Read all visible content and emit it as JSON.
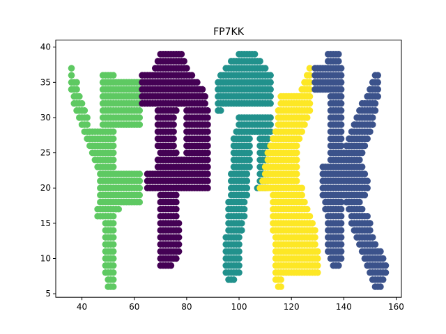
{
  "chart_data": {
    "type": "scatter",
    "title": "FP7KK",
    "xlabel": "",
    "ylabel": "",
    "xlim": [
      30,
      162
    ],
    "ylim": [
      4.5,
      41
    ],
    "x_ticks": [
      40,
      60,
      80,
      100,
      120,
      140,
      160
    ],
    "y_ticks": [
      5,
      10,
      15,
      20,
      25,
      30,
      35,
      40
    ],
    "grid": false,
    "legend": "none",
    "series": [
      {
        "color": "#5ec962",
        "spans": [
          [
            37,
            36,
            36
          ],
          [
            36,
            36,
            36
          ],
          [
            35,
            36,
            38
          ],
          [
            34,
            36,
            38
          ],
          [
            33,
            37,
            39
          ],
          [
            32,
            37,
            40
          ],
          [
            31,
            38,
            41
          ],
          [
            30,
            39,
            42
          ],
          [
            29,
            40,
            42
          ],
          [
            28,
            41,
            52
          ],
          [
            27,
            42,
            52
          ],
          [
            26,
            43,
            52
          ],
          [
            25,
            44,
            52
          ],
          [
            24,
            45,
            52
          ],
          [
            23,
            46,
            52
          ],
          [
            22,
            47,
            62
          ],
          [
            21,
            47,
            62
          ],
          [
            20,
            47,
            62
          ],
          [
            19,
            47,
            62
          ],
          [
            18,
            47,
            62
          ],
          [
            17,
            46,
            54
          ],
          [
            16,
            46,
            48
          ],
          [
            36,
            48,
            52
          ],
          [
            35,
            48,
            62
          ],
          [
            34,
            48,
            62
          ],
          [
            33,
            48,
            62
          ],
          [
            32,
            48,
            62
          ],
          [
            31,
            48,
            62
          ],
          [
            30,
            48,
            62
          ],
          [
            29,
            48,
            62
          ],
          [
            16,
            49,
            52
          ],
          [
            15,
            49,
            52
          ],
          [
            14,
            49,
            52
          ],
          [
            13,
            49,
            52
          ],
          [
            12,
            49,
            52
          ],
          [
            11,
            49,
            52
          ],
          [
            10,
            49,
            52
          ],
          [
            9,
            49,
            52
          ],
          [
            8,
            49,
            52
          ],
          [
            7,
            50,
            52
          ],
          [
            6,
            50,
            52
          ]
        ]
      },
      {
        "color": "#440154",
        "spans": [
          [
            39,
            70,
            78
          ],
          [
            38,
            69,
            79
          ],
          [
            37,
            68,
            80
          ],
          [
            36,
            63,
            82
          ],
          [
            35,
            63,
            84
          ],
          [
            34,
            63,
            86
          ],
          [
            33,
            63,
            87
          ],
          [
            32,
            63,
            87
          ],
          [
            31,
            69,
            76
          ],
          [
            30,
            69,
            75
          ],
          [
            29,
            69,
            75
          ],
          [
            28,
            69,
            75
          ],
          [
            27,
            69,
            75
          ],
          [
            26,
            69,
            75
          ],
          [
            25,
            70,
            76
          ],
          [
            24,
            69,
            88
          ],
          [
            23,
            69,
            88
          ],
          [
            22,
            65,
            88
          ],
          [
            21,
            65,
            88
          ],
          [
            20,
            65,
            88
          ],
          [
            19,
            70,
            76
          ],
          [
            18,
            70,
            76
          ],
          [
            17,
            70,
            76
          ],
          [
            16,
            70,
            76
          ],
          [
            15,
            70,
            77
          ],
          [
            14,
            70,
            77
          ],
          [
            13,
            70,
            77
          ],
          [
            12,
            70,
            77
          ],
          [
            11,
            70,
            77
          ],
          [
            10,
            70,
            76
          ],
          [
            9,
            70,
            74
          ],
          [
            31,
            80,
            88
          ],
          [
            30,
            80,
            88
          ],
          [
            29,
            80,
            88
          ],
          [
            28,
            80,
            88
          ],
          [
            27,
            80,
            88
          ],
          [
            26,
            80,
            88
          ],
          [
            25,
            80,
            88
          ]
        ]
      },
      {
        "color": "#21918c",
        "spans": [
          [
            39,
            100,
            106
          ],
          [
            38,
            97,
            108
          ],
          [
            37,
            95,
            110
          ],
          [
            36,
            93,
            112
          ],
          [
            35,
            92,
            112
          ],
          [
            34,
            92,
            112
          ],
          [
            33,
            92,
            112
          ],
          [
            32,
            92,
            112
          ],
          [
            31,
            92,
            93
          ],
          [
            30,
            100,
            112
          ],
          [
            29,
            100,
            112
          ],
          [
            28,
            99,
            112
          ],
          [
            27,
            98,
            104
          ],
          [
            26,
            98,
            104
          ],
          [
            25,
            98,
            104
          ],
          [
            24,
            98,
            104
          ],
          [
            23,
            98,
            104
          ],
          [
            22,
            97,
            103
          ],
          [
            21,
            97,
            103
          ],
          [
            20,
            97,
            103
          ],
          [
            19,
            97,
            103
          ],
          [
            18,
            96,
            102
          ],
          [
            17,
            96,
            102
          ],
          [
            16,
            96,
            102
          ],
          [
            15,
            96,
            101
          ],
          [
            14,
            96,
            101
          ],
          [
            13,
            95,
            100
          ],
          [
            12,
            95,
            100
          ],
          [
            11,
            95,
            100
          ],
          [
            10,
            95,
            100
          ],
          [
            9,
            95,
            100
          ],
          [
            8,
            95,
            100
          ],
          [
            7,
            96,
            98
          ],
          [
            27,
            108,
            111
          ],
          [
            26,
            108,
            111
          ],
          [
            25,
            108,
            111
          ],
          [
            24,
            108,
            111
          ],
          [
            23,
            108,
            111
          ],
          [
            22,
            108,
            111
          ],
          [
            21,
            108,
            111
          ],
          [
            20,
            107,
            110
          ]
        ]
      },
      {
        "color": "#fde725",
        "spans": [
          [
            37,
            127,
            127
          ],
          [
            36,
            126,
            127
          ],
          [
            35,
            125,
            127
          ],
          [
            34,
            124,
            127
          ],
          [
            33,
            116,
            127
          ],
          [
            32,
            116,
            127
          ],
          [
            31,
            115,
            127
          ],
          [
            30,
            115,
            126
          ],
          [
            29,
            115,
            125
          ],
          [
            28,
            114,
            124
          ],
          [
            27,
            113,
            123
          ],
          [
            26,
            112,
            122
          ],
          [
            25,
            111,
            122
          ],
          [
            24,
            111,
            122
          ],
          [
            23,
            110,
            122
          ],
          [
            22,
            110,
            122
          ],
          [
            21,
            109,
            122
          ],
          [
            20,
            108,
            124
          ],
          [
            19,
            113,
            124
          ],
          [
            18,
            113,
            125
          ],
          [
            17,
            113,
            126
          ],
          [
            16,
            113,
            127
          ],
          [
            15,
            113,
            128
          ],
          [
            14,
            113,
            129
          ],
          [
            13,
            114,
            129
          ],
          [
            12,
            114,
            129
          ],
          [
            11,
            114,
            130
          ],
          [
            10,
            114,
            130
          ],
          [
            9,
            114,
            130
          ],
          [
            8,
            114,
            130
          ],
          [
            7,
            114,
            116
          ],
          [
            6,
            115,
            116
          ]
        ]
      },
      {
        "color": "#3b528b",
        "spans": [
          [
            39,
            134,
            138
          ],
          [
            38,
            134,
            138
          ],
          [
            37,
            129,
            139
          ],
          [
            36,
            129,
            139
          ],
          [
            35,
            129,
            139
          ],
          [
            34,
            129,
            139
          ],
          [
            33,
            135,
            139
          ],
          [
            32,
            135,
            139
          ],
          [
            31,
            135,
            139
          ],
          [
            30,
            135,
            139
          ],
          [
            29,
            135,
            139
          ],
          [
            28,
            135,
            139
          ],
          [
            27,
            135,
            139
          ],
          [
            26,
            135,
            139
          ],
          [
            25,
            135,
            139
          ],
          [
            24,
            135,
            139
          ],
          [
            23,
            132,
            139
          ],
          [
            22,
            132,
            139
          ],
          [
            21,
            132,
            139
          ],
          [
            20,
            132,
            139
          ],
          [
            19,
            132,
            139
          ],
          [
            18,
            133,
            139
          ],
          [
            17,
            133,
            139
          ],
          [
            16,
            134,
            139
          ],
          [
            15,
            134,
            139
          ],
          [
            14,
            134,
            139
          ],
          [
            13,
            134,
            139
          ],
          [
            12,
            134,
            139
          ],
          [
            11,
            134,
            139
          ],
          [
            10,
            135,
            139
          ],
          [
            9,
            136,
            138
          ],
          [
            36,
            152,
            153
          ],
          [
            35,
            151,
            153
          ],
          [
            34,
            150,
            153
          ],
          [
            33,
            149,
            153
          ],
          [
            32,
            147,
            152
          ],
          [
            31,
            146,
            152
          ],
          [
            30,
            145,
            151
          ],
          [
            29,
            144,
            151
          ],
          [
            28,
            143,
            150
          ],
          [
            27,
            142,
            149
          ],
          [
            26,
            141,
            148
          ],
          [
            25,
            140,
            147
          ],
          [
            24,
            140,
            146
          ],
          [
            23,
            140,
            147
          ],
          [
            22,
            140,
            148
          ],
          [
            21,
            140,
            149
          ],
          [
            20,
            140,
            149
          ],
          [
            19,
            140,
            148
          ],
          [
            18,
            141,
            146
          ],
          [
            17,
            142,
            147
          ],
          [
            16,
            143,
            149
          ],
          [
            15,
            143,
            150
          ],
          [
            14,
            144,
            150
          ],
          [
            13,
            145,
            151
          ],
          [
            12,
            146,
            152
          ],
          [
            11,
            147,
            154
          ],
          [
            10,
            148,
            155
          ],
          [
            9,
            149,
            156
          ],
          [
            8,
            150,
            156
          ],
          [
            7,
            151,
            155
          ],
          [
            6,
            152,
            154
          ]
        ]
      }
    ]
  }
}
